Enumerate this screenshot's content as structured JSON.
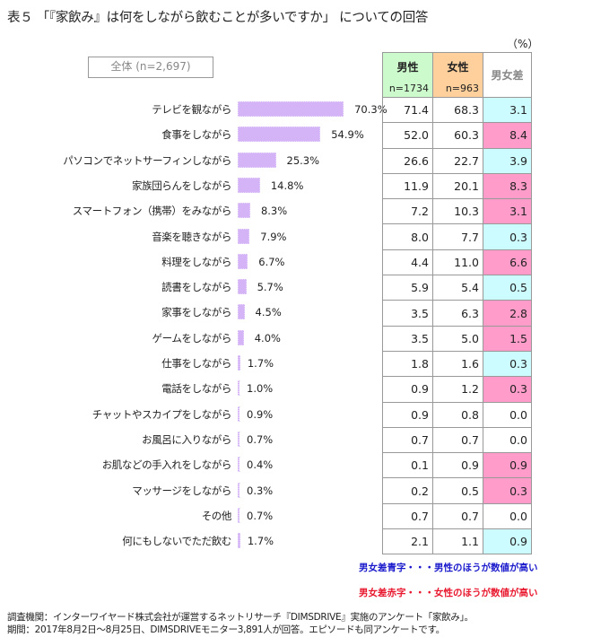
{
  "title": "表５ 「『家飲み』は何をしながら飲むことが多いですか」 についての回答",
  "unit": "（%）",
  "total_label": "全体 (n=2,697)",
  "table_header": {
    "male": "男性",
    "male_n": "n=1734",
    "female": "女性",
    "female_n": "n=963",
    "diff": "男女差"
  },
  "colors": {
    "bar": "#d5b3f7",
    "male_header": "#ccfacc",
    "female_header": "#ffd09c",
    "diff_blue_bg": "#ccfcff",
    "diff_blue_text": "#4a7bf0",
    "diff_red_bg": "#ff9cca",
    "diff_red_text": "#e8182e"
  },
  "rows": [
    {
      "label": "テレビを観ながら",
      "total": "70.3%",
      "male": "71.4",
      "female": "68.3",
      "diff": "3.1",
      "type": "blue"
    },
    {
      "label": "食事をしながら",
      "total": "54.9%",
      "male": "52.0",
      "female": "60.3",
      "diff": "8.4",
      "type": "red"
    },
    {
      "label": "パソコンでネットサーフィンしながら",
      "total": "25.3%",
      "male": "26.6",
      "female": "22.7",
      "diff": "3.9",
      "type": "blue"
    },
    {
      "label": "家族団らんをしながら",
      "total": "14.8%",
      "male": "11.9",
      "female": "20.1",
      "diff": "8.3",
      "type": "red"
    },
    {
      "label": "スマートフォン（携帯）をみながら",
      "total": "8.3%",
      "male": "7.2",
      "female": "10.3",
      "diff": "3.1",
      "type": "red"
    },
    {
      "label": "音楽を聴きながら",
      "total": "7.9%",
      "male": "8.0",
      "female": "7.7",
      "diff": "0.3",
      "type": "blue"
    },
    {
      "label": "料理をしながら",
      "total": "6.7%",
      "male": "4.4",
      "female": "11.0",
      "diff": "6.6",
      "type": "red"
    },
    {
      "label": "読書をしながら",
      "total": "5.7%",
      "male": "5.9",
      "female": "5.4",
      "diff": "0.5",
      "type": "blue"
    },
    {
      "label": "家事をしながら",
      "total": "4.5%",
      "male": "3.5",
      "female": "6.3",
      "diff": "2.8",
      "type": "red"
    },
    {
      "label": "ゲームをしながら",
      "total": "4.0%",
      "male": "3.5",
      "female": "5.0",
      "diff": "1.5",
      "type": "red"
    },
    {
      "label": "仕事をしながら",
      "total": "1.7%",
      "male": "1.8",
      "female": "1.6",
      "diff": "0.3",
      "type": "blue"
    },
    {
      "label": "電話をしながら",
      "total": "1.0%",
      "male": "0.9",
      "female": "1.2",
      "diff": "0.3",
      "type": "red"
    },
    {
      "label": "チャットやスカイプをしながら",
      "total": "0.9%",
      "male": "0.9",
      "female": "0.8",
      "diff": "0.0",
      "type": "none"
    },
    {
      "label": "お風呂に入りながら",
      "total": "0.7%",
      "male": "0.7",
      "female": "0.7",
      "diff": "0.0",
      "type": "none"
    },
    {
      "label": "お肌などの手入れをしながら",
      "total": "0.4%",
      "male": "0.1",
      "female": "0.9",
      "diff": "0.9",
      "type": "red"
    },
    {
      "label": "マッサージをしながら",
      "total": "0.3%",
      "male": "0.2",
      "female": "0.5",
      "diff": "0.3",
      "type": "red"
    },
    {
      "label": "その他",
      "total": "0.7%",
      "male": "0.7",
      "female": "0.7",
      "diff": "0.0",
      "type": "none"
    },
    {
      "label": "何にもしないでただ飲む",
      "total": "1.7%",
      "male": "2.1",
      "female": "1.1",
      "diff": "0.9",
      "type": "blue"
    }
  ],
  "legend": {
    "blue": "男女差青字・・・男性のほうが数値が高い",
    "red": "男女差赤字・・・女性のほうが数値が高い"
  },
  "source": {
    "line1": "調査機関：インターワイヤード株式会社が運営するネットリサーチ『DIMSDRIVE』実施のアンケート「家飲み」。",
    "line2": "期間：2017年8月2日～8月25日、DIMSDRIVEモニター3,891人が回答。エピソードも同アンケートです。"
  },
  "chart_data": {
    "type": "bar",
    "title": "表５ 「『家飲み』は何をしながら飲むことが多いですか」 についての回答",
    "subtitle": "全体 (n=2,697)",
    "xlabel": "",
    "ylabel": "",
    "unit": "%",
    "orientation": "horizontal",
    "categories": [
      "テレビを観ながら",
      "食事をしながら",
      "パソコンでネットサーフィンしながら",
      "家族団らんをしながら",
      "スマートフォン（携帯）をみながら",
      "音楽を聴きながら",
      "料理をしながら",
      "読書をしながら",
      "家事をしながら",
      "ゲームをしながら",
      "仕事をしながら",
      "電話をしながら",
      "チャットやスカイプをしながら",
      "お風呂に入りながら",
      "お肌などの手入れをしながら",
      "マッサージをしながら",
      "その他",
      "何にもしないでただ飲む"
    ],
    "series": [
      {
        "name": "全体 (n=2,697)",
        "values": [
          70.3,
          54.9,
          25.3,
          14.8,
          8.3,
          7.9,
          6.7,
          5.7,
          4.5,
          4.0,
          1.7,
          1.0,
          0.9,
          0.7,
          0.4,
          0.3,
          0.7,
          1.7
        ]
      },
      {
        "name": "男性 n=1734",
        "values": [
          71.4,
          52.0,
          26.6,
          11.9,
          7.2,
          8.0,
          4.4,
          5.9,
          3.5,
          3.5,
          1.8,
          0.9,
          0.9,
          0.7,
          0.1,
          0.2,
          0.7,
          2.1
        ]
      },
      {
        "name": "女性 n=963",
        "values": [
          68.3,
          60.3,
          22.7,
          20.1,
          10.3,
          7.7,
          11.0,
          5.4,
          6.3,
          5.0,
          1.6,
          1.2,
          0.8,
          0.7,
          0.9,
          0.5,
          0.7,
          1.1
        ]
      },
      {
        "name": "男女差",
        "values": [
          3.1,
          8.4,
          3.9,
          8.3,
          3.1,
          0.3,
          6.6,
          0.5,
          2.8,
          1.5,
          0.3,
          0.3,
          0.0,
          0.0,
          0.9,
          0.3,
          0.0,
          0.9
        ]
      }
    ],
    "grid": false,
    "legend_position": "bottom-right"
  }
}
